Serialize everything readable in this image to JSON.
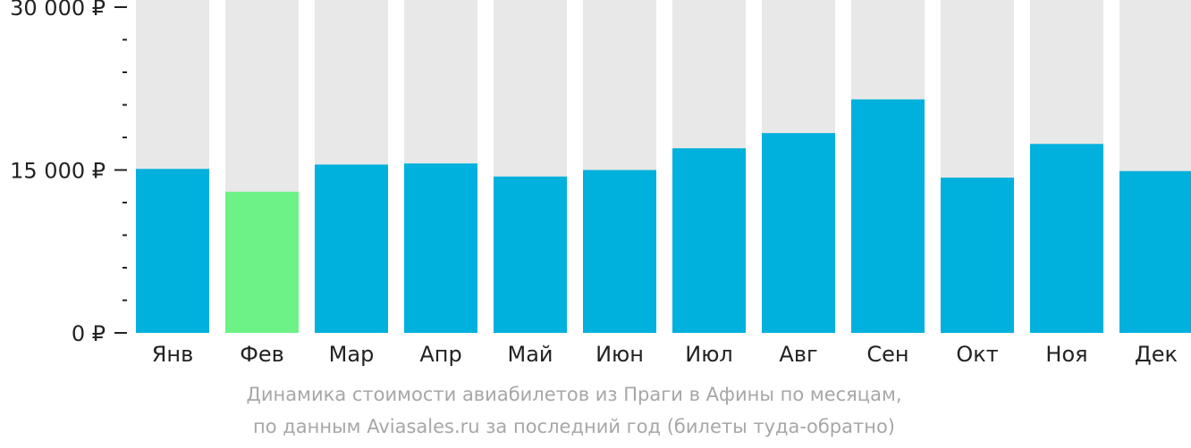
{
  "chart_data": {
    "type": "bar",
    "categories": [
      "Янв",
      "Фев",
      "Мар",
      "Апр",
      "Май",
      "Июн",
      "Июл",
      "Авг",
      "Сен",
      "Окт",
      "Ноя",
      "Дек"
    ],
    "values": [
      15100,
      13000,
      15500,
      15600,
      14400,
      15000,
      17000,
      18400,
      21500,
      14300,
      17400,
      14900
    ],
    "highlight_index": 1,
    "ylim": [
      0,
      30000
    ],
    "yticks": [
      {
        "value": 0,
        "label": "0 ₽"
      },
      {
        "value": 15000,
        "label": "15 000 ₽"
      },
      {
        "value": 30000,
        "label": "30 000 ₽"
      }
    ],
    "minor_tick_step": 3000,
    "colors": {
      "bar": "#00b0dd",
      "highlight": "#6cf285",
      "background_bar": "#e8e8e8",
      "axis_text": "#222222",
      "caption_text": "#a7a7a7"
    }
  },
  "caption": {
    "line1": "Динамика стоимости авиабилетов из Праги в Афины по месяцам,",
    "line2": "по данным Aviasales.ru за последний год (билеты туда-обратно)"
  }
}
